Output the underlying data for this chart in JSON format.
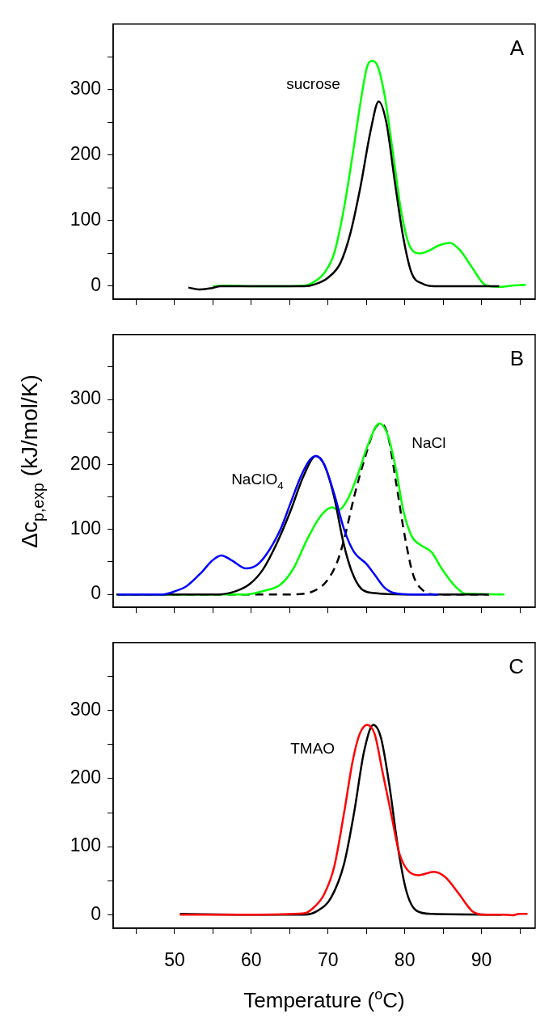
{
  "chart_data": [
    {
      "type": "line",
      "xlim": [
        42,
        97
      ],
      "ylim": [
        -20,
        400
      ],
      "xticks": [
        {
          "value": 45,
          "label": null
        },
        50,
        {
          "value": 55,
          "label": null
        },
        60,
        {
          "value": 65,
          "label": null
        },
        70,
        {
          "value": 75,
          "label": null
        },
        80,
        {
          "value": 85,
          "label": null
        },
        90,
        {
          "value": 95,
          "label": null
        }
      ],
      "yticks": [
        0,
        {
          "value": 50,
          "label": null
        },
        100,
        {
          "value": 150,
          "label": null
        },
        200,
        {
          "value": 250,
          "label": null
        },
        300,
        {
          "value": 350,
          "label": null
        }
      ],
      "tick_labels": "y",
      "legend": false,
      "annotations": [
        "A"
      ],
      "series": [
        {
          "color": "#000000",
          "x": [
            51.8,
            53.3,
            54.8,
            56,
            60,
            66.9,
            68.3,
            70,
            71.6,
            72.9,
            74.2,
            75.6,
            76.6,
            77.6,
            78.7,
            79.8,
            80.9,
            82.3,
            83.8,
            88,
            92.3
          ],
          "values": [
            -2,
            -5,
            -3,
            0,
            0,
            0,
            3,
            13,
            35,
            80,
            150,
            240,
            282,
            250,
            160,
            75,
            20,
            4,
            0,
            0,
            0
          ]
        },
        {
          "name": "sucrose",
          "color": "#00ff00",
          "x": [
            55,
            56.7,
            60,
            64,
            67,
            68.1,
            69.5,
            70.8,
            72.1,
            73.2,
            74.3,
            75.1,
            75.8,
            76.5,
            77.4,
            78.5,
            79.6,
            80.7,
            82,
            83.1,
            84.4,
            85.9,
            87.2,
            88.7,
            90.5,
            92.3,
            94,
            95.8
          ],
          "values": [
            0,
            1,
            0,
            0,
            1,
            6,
            20,
            50,
            120,
            200,
            285,
            335,
            344,
            335,
            290,
            200,
            110,
            60,
            50,
            54,
            62,
            66,
            55,
            30,
            2,
            -1,
            1,
            2
          ]
        }
      ]
    },
    {
      "type": "line",
      "xlim": [
        42,
        97
      ],
      "ylim": [
        -20,
        400
      ],
      "xticks": [
        {
          "value": 45,
          "label": null
        },
        50,
        {
          "value": 55,
          "label": null
        },
        60,
        {
          "value": 65,
          "label": null
        },
        70,
        {
          "value": 75,
          "label": null
        },
        80,
        {
          "value": 85,
          "label": null
        },
        90,
        {
          "value": 95,
          "label": null
        }
      ],
      "yticks": [
        0,
        {
          "value": 50,
          "label": null
        },
        100,
        {
          "value": 150,
          "label": null
        },
        200,
        {
          "value": 250,
          "label": null
        },
        300,
        {
          "value": 350,
          "label": null
        }
      ],
      "tick_labels": "y",
      "legend": false,
      "ylabel": "Δc$_{p,exp}$ (kJ/mol/K)",
      "annotations": [
        "B"
      ],
      "series": [
        {
          "name": "NaClO$_{4}$",
          "color": "#0000ff",
          "x": [
            42.6,
            48.4,
            50.1,
            51.6,
            53.6,
            54.9,
            56.1,
            57.5,
            59.3,
            60.7,
            62,
            63.8,
            65.1,
            66.4,
            67.5,
            68.4,
            69.5,
            70.8,
            72.1,
            73.4,
            75,
            76.1,
            77.4,
            78.7,
            80.9,
            84.4
          ],
          "values": [
            0,
            0,
            5,
            13,
            35,
            52,
            60,
            52,
            40,
            45,
            62,
            100,
            140,
            180,
            205,
            213,
            200,
            155,
            100,
            65,
            47,
            30,
            10,
            2,
            0,
            0
          ]
        },
        {
          "color": "#000000",
          "x": [
            42.4,
            55.7,
            58,
            59.8,
            61.5,
            63.3,
            65.1,
            66.8,
            68.4,
            69.5,
            70.8,
            72,
            73.1,
            74.4,
            76.1,
            80,
            91
          ],
          "values": [
            0,
            0,
            5,
            16,
            38,
            78,
            128,
            182,
            213,
            200,
            150,
            80,
            35,
            8,
            2,
            0,
            0
          ]
        },
        {
          "name": "NaCl",
          "color": "#00ff00",
          "x": [
            42.6,
            59.3,
            61.5,
            63.8,
            65.5,
            67.3,
            69,
            70.5,
            71.4,
            72.5,
            73.9,
            75.2,
            76.7,
            77.8,
            78.9,
            79.8,
            80.9,
            82.2,
            83.5,
            84.8,
            86.6,
            87.9,
            93
          ],
          "values": [
            0,
            0,
            5,
            15,
            40,
            85,
            120,
            134,
            130,
            145,
            185,
            230,
            263,
            245,
            190,
            130,
            90,
            75,
            65,
            40,
            12,
            1,
            0
          ]
        },
        {
          "color": "#000000",
          "line_style": "dashed",
          "x": [
            42.6,
            65.4,
            68.1,
            69.8,
            71.2,
            72.1,
            73.4,
            74.8,
            76.1,
            76.9,
            77.8,
            78.9,
            80,
            81.1,
            82.4,
            84,
            91
          ],
          "values": [
            0,
            0,
            5,
            20,
            50,
            85,
            150,
            210,
            255,
            263,
            245,
            170,
            90,
            30,
            6,
            0,
            0
          ]
        }
      ]
    },
    {
      "type": "line",
      "xlim": [
        42,
        97
      ],
      "ylim": [
        -20,
        400
      ],
      "xticks": [
        {
          "value": 45,
          "label": null
        },
        50,
        {
          "value": 55,
          "label": null
        },
        60,
        {
          "value": 65,
          "label": null
        },
        70,
        {
          "value": 75,
          "label": null
        },
        80,
        {
          "value": 85,
          "label": null
        },
        90,
        {
          "value": 95,
          "label": null
        }
      ],
      "yticks": [
        0,
        {
          "value": 50,
          "label": null
        },
        100,
        {
          "value": 150,
          "label": null
        },
        200,
        {
          "value": 250,
          "label": null
        },
        300,
        {
          "value": 350,
          "label": null
        }
      ],
      "legend": false,
      "xlabel": "Temperature ($^{o}$C)",
      "annotations": [
        "C"
      ],
      "series": [
        {
          "name": "TMAO",
          "color": "#ff0000",
          "x": [
            50.7,
            60,
            66.9,
            68.1,
            69.5,
            70.8,
            72.1,
            73.2,
            74.1,
            75.1,
            76.1,
            77.1,
            78.2,
            79.3,
            80.4,
            81.8,
            83.8,
            85.3,
            87.1,
            88.8,
            90.5,
            92.7,
            94,
            94.9,
            96
          ],
          "values": [
            0,
            0,
            2,
            10,
            30,
            70,
            150,
            225,
            265,
            279,
            265,
            210,
            150,
            90,
            65,
            58,
            63,
            55,
            30,
            5,
            0,
            0,
            -1,
            1,
            1
          ]
        },
        {
          "color": "#000000",
          "x": [
            50.7,
            60,
            66.9,
            68.7,
            70.4,
            72.1,
            73.4,
            74.7,
            75.9,
            76.9,
            78,
            79.1,
            80.2,
            81.5,
            83.5,
            92.7
          ],
          "values": [
            1,
            0,
            0,
            6,
            25,
            75,
            150,
            240,
            279,
            260,
            190,
            100,
            35,
            6,
            1,
            0
          ]
        }
      ]
    }
  ]
}
